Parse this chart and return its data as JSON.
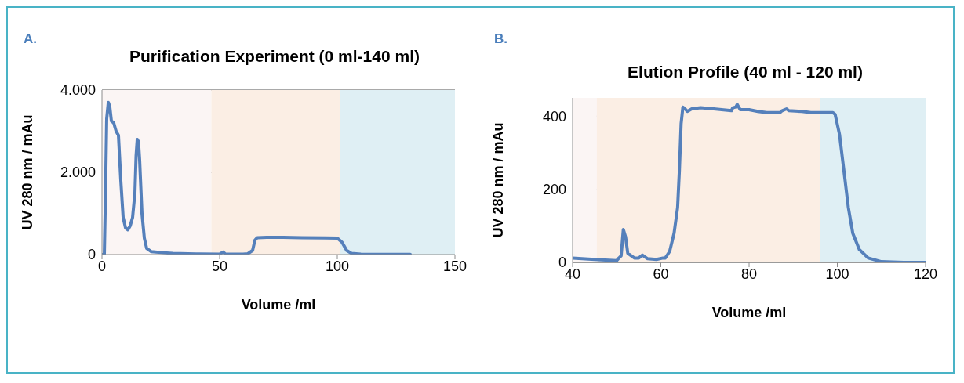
{
  "chart_data": [
    {
      "type": "line",
      "title": "Purification Experiment (0 ml-140 ml)",
      "xlabel": "Volume /ml",
      "ylabel": "UV 280 nm / mAu",
      "annotations": [
        "A."
      ],
      "xlim": [
        0,
        150
      ],
      "xticks": [
        0,
        50,
        100,
        150
      ],
      "ylim": [
        0,
        4000
      ],
      "yticks": [
        0,
        {
          "value": 2000,
          "label": "2.000"
        },
        {
          "value": 4000,
          "label": "4.000"
        }
      ],
      "grid": "y",
      "legend": false,
      "marker": "none",
      "line_style": "solid",
      "bands": [
        {
          "axis": "x",
          "from": 0,
          "to": 46.5,
          "color": "#fbf5f4"
        },
        {
          "axis": "x",
          "from": 46.5,
          "to": 102,
          "color": "#fbeee4"
        },
        {
          "axis": "x",
          "from": 101,
          "to": 150,
          "color": "#dfeff4"
        }
      ],
      "series": [
        {
          "color": "#5580bb",
          "x": [
            0,
            1,
            1.5,
            2,
            2.7,
            3.3,
            4,
            5,
            6,
            7,
            8,
            9,
            10,
            11,
            12,
            13,
            14,
            14.5,
            15,
            15.5,
            16,
            17,
            18,
            19,
            21,
            25,
            30,
            40,
            50,
            51.5,
            52.5,
            60,
            62,
            64,
            65,
            66,
            70,
            77,
            85,
            95,
            100,
            102,
            104,
            106,
            110,
            120,
            131
          ],
          "values": [
            0,
            0,
            1500,
            3300,
            3700,
            3600,
            3250,
            3200,
            3000,
            2900,
            1800,
            900,
            650,
            600,
            700,
            900,
            1500,
            2400,
            2800,
            2750,
            2300,
            1000,
            400,
            150,
            70,
            50,
            30,
            15,
            10,
            60,
            10,
            10,
            20,
            100,
            350,
            410,
            420,
            420,
            410,
            405,
            400,
            300,
            100,
            30,
            10,
            5,
            5
          ]
        }
      ]
    },
    {
      "type": "line",
      "title": "Elution Profile (40 ml - 120 ml)",
      "xlabel": "Volume /ml",
      "ylabel": "UV 280 nm / mAu",
      "annotations": [
        "B."
      ],
      "xlim": [
        40,
        120
      ],
      "xticks": [
        40,
        60,
        80,
        100,
        120
      ],
      "ylim": [
        0,
        450
      ],
      "yticks": [
        0,
        200,
        400
      ],
      "grid": "y",
      "legend": false,
      "marker": "none",
      "line_style": "solid",
      "bands": [
        {
          "axis": "x",
          "from": 40,
          "to": 45.5,
          "color": "#fbf5f4"
        },
        {
          "axis": "x",
          "from": 45.5,
          "to": 97,
          "color": "#fbeee4"
        },
        {
          "axis": "x",
          "from": 96,
          "to": 120,
          "color": "#dfeff4"
        }
      ],
      "series": [
        {
          "color": "#5580bb",
          "x": [
            40,
            45,
            50,
            50.5,
            51,
            51.5,
            52,
            52.5,
            54,
            55,
            55.8,
            57,
            59,
            60.5,
            61,
            62,
            63,
            63.8,
            64.2,
            64.6,
            65,
            65.5,
            66,
            67,
            69,
            72,
            76,
            76.3,
            77,
            77.3,
            78,
            80,
            82,
            84,
            87,
            87.5,
            88.5,
            89,
            92,
            94,
            96,
            99,
            99.5,
            100.5,
            101.5,
            102.5,
            103.5,
            105,
            107,
            110,
            115,
            120
          ],
          "values": [
            12,
            8,
            5,
            12,
            18,
            90,
            70,
            25,
            12,
            12,
            20,
            10,
            8,
            12,
            12,
            30,
            80,
            150,
            250,
            380,
            425,
            420,
            413,
            420,
            423,
            420,
            415,
            423,
            425,
            432,
            418,
            418,
            413,
            410,
            410,
            415,
            420,
            415,
            413,
            410,
            410,
            410,
            405,
            350,
            250,
            150,
            80,
            35,
            12,
            2,
            0,
            0
          ]
        }
      ]
    }
  ]
}
